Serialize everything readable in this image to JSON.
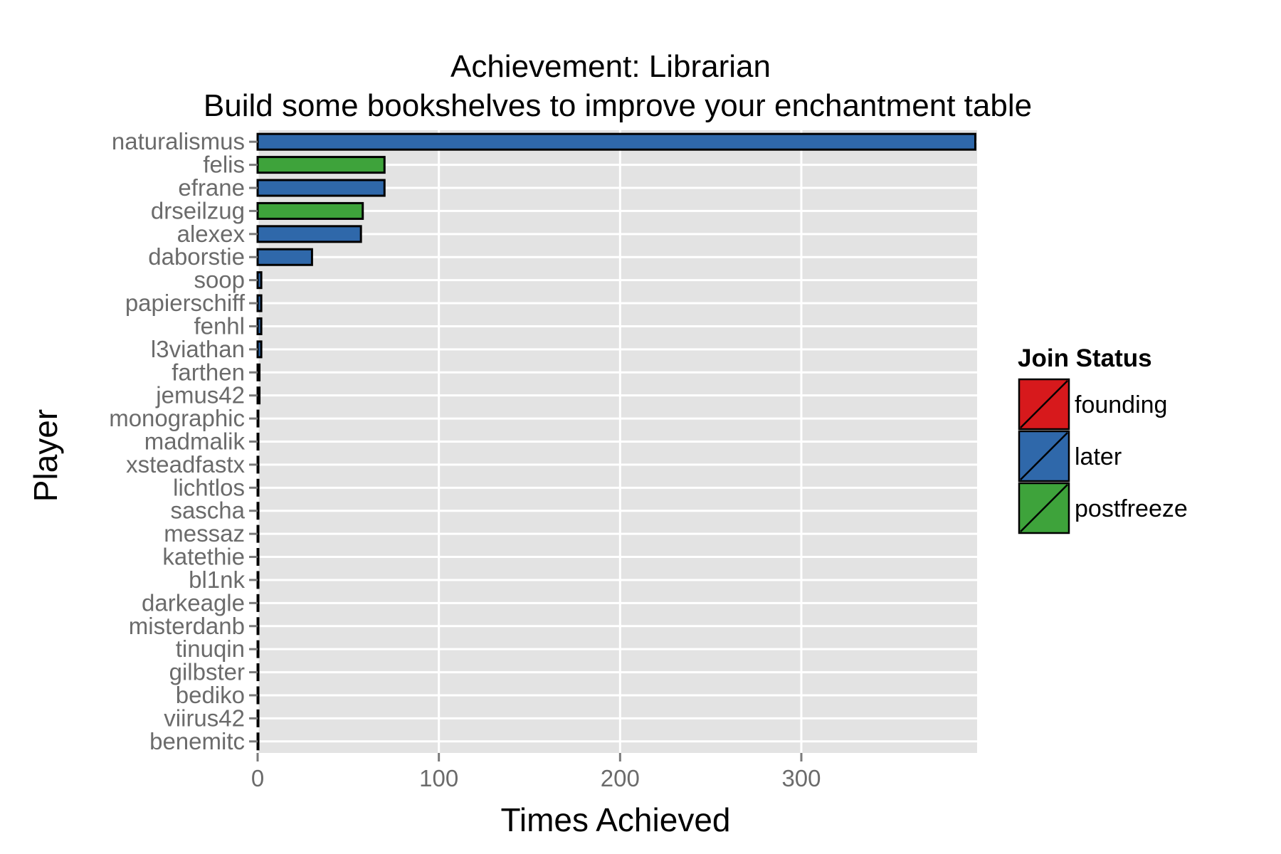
{
  "chart_data": {
    "type": "bar",
    "orientation": "horizontal",
    "title": "Achievement: Librarian",
    "subtitle": "Build some bookshelves to improve your enchantment table",
    "xlabel": "Times Achieved",
    "ylabel": "Player",
    "xlim": [
      0,
      397
    ],
    "xticks": [
      0,
      100,
      200,
      300
    ],
    "grid": true,
    "legend": {
      "title": "Join Status",
      "placement": "right",
      "entries": [
        {
          "label": "founding",
          "color": "#d7191c"
        },
        {
          "label": "later",
          "color": "#2f68aa"
        },
        {
          "label": "postfreeze",
          "color": "#3ea33b"
        }
      ]
    },
    "categories": [
      "naturalismus",
      "felis",
      "efrane",
      "drseilzug",
      "alexex",
      "daborstie",
      "soop",
      "papierschiff",
      "fenhl",
      "l3viathan",
      "farthen",
      "jemus42",
      "monographic",
      "madmalik",
      "xsteadfastx",
      "lichtlos",
      "sascha",
      "messaz",
      "katethie",
      "bl1nk",
      "darkeagle",
      "misterdanb",
      "tinuqin",
      "gilbster",
      "bediko",
      "viirus42",
      "benemitc"
    ],
    "values": [
      396,
      70,
      70,
      58,
      57,
      30,
      2,
      2,
      2,
      2,
      1,
      1,
      0,
      0,
      0,
      0,
      0,
      0,
      0,
      0,
      0,
      0,
      0,
      0,
      0,
      0,
      0
    ],
    "status": [
      "later",
      "postfreeze",
      "later",
      "postfreeze",
      "later",
      "later",
      "later",
      "later",
      "later",
      "later",
      "later",
      "later",
      "later",
      "later",
      "later",
      "later",
      "later",
      "later",
      "later",
      "later",
      "later",
      "later",
      "later",
      "later",
      "later",
      "later",
      "later"
    ]
  }
}
